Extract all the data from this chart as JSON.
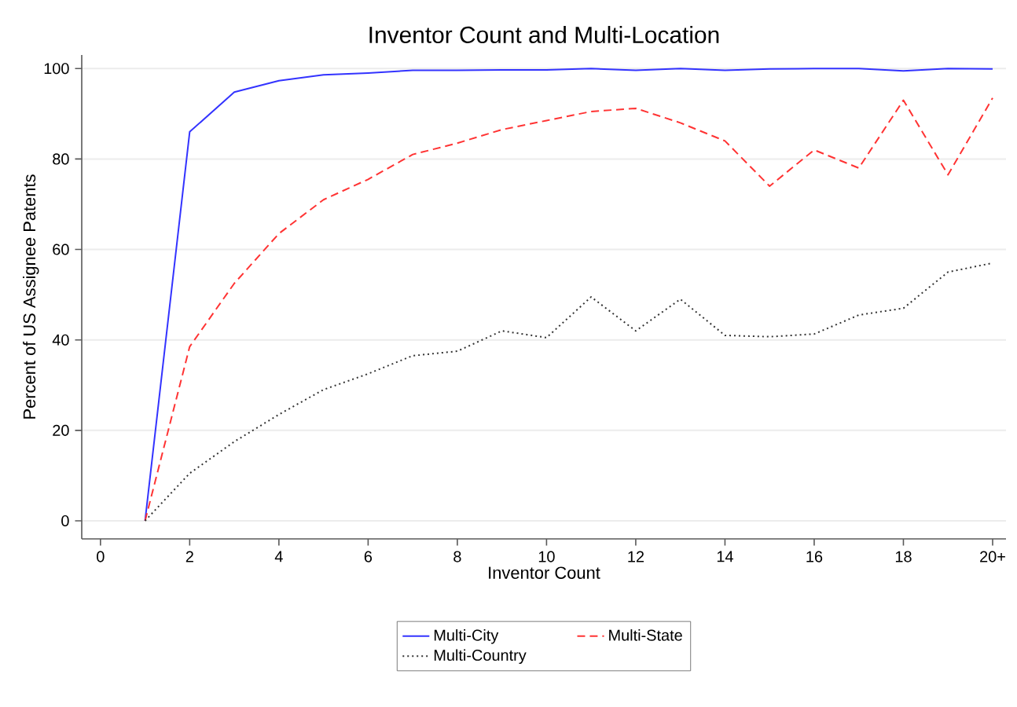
{
  "chart_data": {
    "type": "line",
    "title": "Inventor Count and Multi-Location",
    "xlabel": "Inventor Count",
    "ylabel": "Percent of US Assignee Patents",
    "x": [
      1,
      2,
      3,
      4,
      5,
      6,
      7,
      8,
      9,
      10,
      11,
      12,
      13,
      14,
      15,
      16,
      17,
      18,
      19,
      20
    ],
    "series": [
      {
        "name": "Multi-City",
        "color": "#3333ff",
        "line_style": "solid",
        "values": [
          0,
          86,
          94.8,
          97.3,
          98.6,
          99,
          99.6,
          99.6,
          99.7,
          99.7,
          100,
          99.6,
          100,
          99.6,
          99.9,
          100,
          100,
          99.5,
          100,
          99.9
        ]
      },
      {
        "name": "Multi-State",
        "color": "#ff3333",
        "line_style": "dashed",
        "values": [
          0,
          38.5,
          52.5,
          63.5,
          71,
          75.5,
          81,
          83.5,
          86.5,
          88.5,
          90.5,
          91.2,
          88,
          84,
          74,
          82,
          78,
          93,
          76.5,
          93.5
        ]
      },
      {
        "name": "Multi-Country",
        "color": "#333333",
        "line_style": "dotted",
        "values": [
          0,
          10.5,
          17.5,
          23.5,
          29,
          32.5,
          36.5,
          37.5,
          42,
          40.5,
          49.5,
          42,
          49,
          41,
          40.7,
          41.3,
          45.5,
          47,
          55,
          57
        ]
      }
    ],
    "xlim": [
      -0.42,
      20.3
    ],
    "ylim": [
      -4,
      103
    ],
    "xticks": [
      0,
      2,
      4,
      6,
      8,
      10,
      12,
      14,
      16,
      18,
      {
        "value": 20,
        "label": "20+"
      }
    ],
    "yticks": [
      0,
      20,
      40,
      60,
      80,
      100
    ],
    "grid": "y",
    "legend": "bottom",
    "marker": "none"
  }
}
